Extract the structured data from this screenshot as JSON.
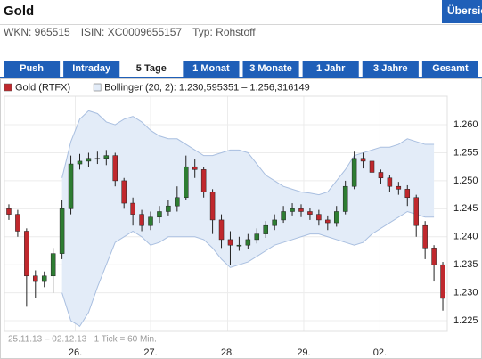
{
  "header": {
    "title": "Gold",
    "button": "Übersic"
  },
  "info": [
    "WKN: 965515",
    "ISIN: XC0009655157",
    "Typ: Rohstoff"
  ],
  "tabs": {
    "items": [
      "Push",
      "Intraday",
      "5 Tage",
      "1 Monat",
      "3 Monate",
      "1 Jahr",
      "3 Jahre",
      "Gesamt"
    ],
    "selected": 2
  },
  "chart_data": {
    "type": "candlestick",
    "note": "25.11.13 – 02.12.13   1 Tick = 60 Min.",
    "grid": true,
    "xlim": [
      -0.5,
      49.5
    ],
    "xticks": [
      {
        "value": 7.5,
        "label": "26."
      },
      {
        "value": 16,
        "label": "27."
      },
      {
        "value": 24.7,
        "label": "28."
      },
      {
        "value": 33.3,
        "label": "29."
      },
      {
        "value": 41.9,
        "label": "02."
      }
    ],
    "ylim": [
      1.2231,
      1.2651
    ],
    "yticks": [
      1.225,
      {
        "value": 1.23,
        "label": "1.230"
      },
      1.235,
      {
        "value": 1.24,
        "label": "1.240"
      },
      1.245,
      {
        "value": 1.25,
        "label": "1.250"
      },
      1.255,
      {
        "value": 1.26,
        "label": "1.260"
      }
    ],
    "series": [
      {
        "name": "Gold (RTFX)",
        "up_color": "#2e7d32",
        "down_color": "#c0282d",
        "open": [
          1.245,
          1.244,
          1.241,
          1.233,
          1.232,
          1.233,
          1.237,
          1.245,
          1.253,
          1.2535,
          1.254,
          1.254,
          1.2545,
          1.25,
          1.246,
          1.244,
          1.242,
          1.2435,
          1.2445,
          1.2455,
          1.247,
          1.2525,
          1.252,
          1.248,
          1.243,
          1.2395,
          1.2385,
          1.2385,
          1.2395,
          1.2405,
          1.242,
          1.243,
          1.2445,
          1.245,
          1.2445,
          1.244,
          1.243,
          1.2425,
          1.2445,
          1.249,
          1.254,
          1.2535,
          1.2515,
          1.2505,
          1.249,
          1.2485,
          1.247,
          1.242,
          1.238,
          1.235
        ],
        "high": [
          1.2458,
          1.2448,
          1.2415,
          1.234,
          1.2338,
          1.238,
          1.2465,
          1.2545,
          1.2548,
          1.255,
          1.2552,
          1.2555,
          1.255,
          1.2505,
          1.247,
          1.2448,
          1.2445,
          1.2455,
          1.2465,
          1.249,
          1.2545,
          1.2538,
          1.2525,
          1.2485,
          1.244,
          1.241,
          1.24,
          1.2405,
          1.2415,
          1.2428,
          1.244,
          1.2455,
          1.246,
          1.2458,
          1.2452,
          1.2448,
          1.2438,
          1.2455,
          1.25,
          1.2552,
          1.255,
          1.254,
          1.252,
          1.251,
          1.2498,
          1.2492,
          1.2475,
          1.2428,
          1.2385,
          1.2355
        ],
        "low": [
          1.243,
          1.24,
          1.2275,
          1.229,
          1.231,
          1.23,
          1.236,
          1.244,
          1.252,
          1.2525,
          1.253,
          1.2528,
          1.249,
          1.245,
          1.242,
          1.241,
          1.2412,
          1.2425,
          1.2438,
          1.2445,
          1.2465,
          1.2505,
          1.247,
          1.2405,
          1.238,
          1.235,
          1.2375,
          1.2378,
          1.2388,
          1.2398,
          1.2412,
          1.2425,
          1.2438,
          1.2435,
          1.243,
          1.242,
          1.2412,
          1.2418,
          1.244,
          1.2485,
          1.2522,
          1.2505,
          1.2495,
          1.248,
          1.2475,
          1.2455,
          1.24,
          1.236,
          1.232,
          1.2268
        ],
        "close": [
          1.244,
          1.241,
          1.233,
          1.232,
          1.233,
          1.237,
          1.245,
          1.253,
          1.2535,
          1.254,
          1.254,
          1.2545,
          1.25,
          1.246,
          1.244,
          1.242,
          1.2435,
          1.2445,
          1.2455,
          1.247,
          1.2525,
          1.252,
          1.248,
          1.243,
          1.2395,
          1.2385,
          1.2385,
          1.2395,
          1.2405,
          1.242,
          1.243,
          1.2445,
          1.245,
          1.2445,
          1.244,
          1.243,
          1.2425,
          1.2445,
          1.249,
          1.254,
          1.2535,
          1.2515,
          1.2505,
          1.249,
          1.2485,
          1.247,
          1.242,
          1.238,
          1.235,
          1.229
        ]
      },
      {
        "name": "Bollinger (20, 2): 1.230,595351 – 1.256,316149",
        "color": "#a9bfe0",
        "fill": "#e3ecf8",
        "upper": [
          null,
          null,
          null,
          null,
          null,
          null,
          1.2505,
          1.257,
          1.261,
          1.2625,
          1.262,
          1.2605,
          1.26,
          1.261,
          1.2615,
          1.2605,
          1.259,
          1.258,
          1.2575,
          1.2575,
          1.2565,
          1.2555,
          1.2545,
          1.2545,
          1.255,
          1.2555,
          1.2555,
          1.255,
          1.253,
          1.251,
          1.25,
          1.249,
          1.2485,
          1.248,
          1.2478,
          1.2475,
          1.248,
          1.25,
          1.252,
          1.2545,
          1.255,
          1.2555,
          1.256,
          1.256,
          1.2565,
          1.2575,
          1.257,
          1.2565,
          1.2565,
          null
        ],
        "lower": [
          null,
          null,
          null,
          null,
          null,
          null,
          1.23,
          1.225,
          1.224,
          1.2265,
          1.231,
          1.235,
          1.239,
          1.24,
          1.241,
          1.24,
          1.2385,
          1.239,
          1.24,
          1.24,
          1.24,
          1.24,
          1.2395,
          1.238,
          1.236,
          1.2345,
          1.235,
          1.2355,
          1.2365,
          1.2375,
          1.2385,
          1.239,
          1.2395,
          1.24,
          1.2405,
          1.2405,
          1.24,
          1.2395,
          1.239,
          1.2385,
          1.239,
          1.2405,
          1.2415,
          1.2425,
          1.2435,
          1.2445,
          1.244,
          1.2435,
          1.2435,
          null
        ]
      }
    ]
  }
}
